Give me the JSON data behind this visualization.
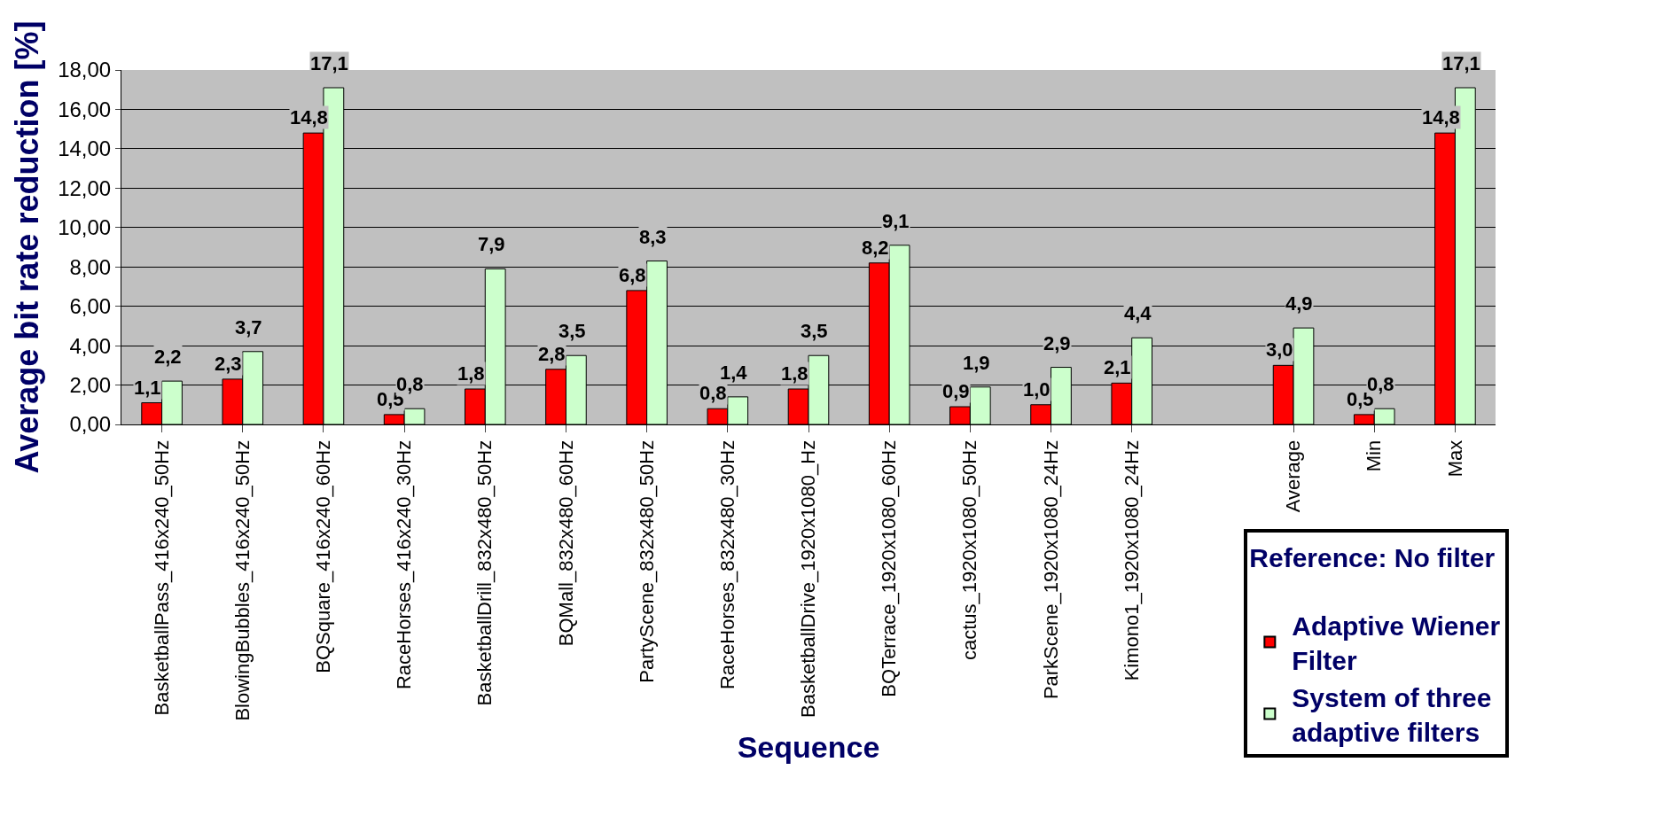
{
  "chart_data": {
    "type": "bar",
    "xlabel": "Sequence",
    "ylabel": "Average bit rate reduction [%]",
    "legend_title": "Reference: No filter",
    "categories": [
      "BasketballPass_416x240_50Hz",
      "BlowingBubbles_416x240_50Hz",
      "BQSquare_416x240_60Hz",
      "RaceHorses_416x240_30Hz",
      "BasketballDrill_832x480_50Hz",
      "BQMall_832x480_60Hz",
      "PartyScene_832x480_50Hz",
      "RaceHorses_832x480_30Hz",
      "BasketballDrive_1920x1080_Hz",
      "BQTerrace_1920x1080_60Hz",
      "cactus_1920x1080_50Hz",
      "ParkScene_1920x1080_24Hz",
      "Kimono1_1920x1080_24Hz",
      null,
      "Average",
      "Min",
      "Max"
    ],
    "series": [
      {
        "name": "Adaptive Wiener Filter",
        "color": "#ff0000",
        "values": [
          1.1,
          2.3,
          14.8,
          0.5,
          1.8,
          2.8,
          6.8,
          0.8,
          1.8,
          8.2,
          0.9,
          1.0,
          2.1,
          null,
          3.0,
          0.5,
          14.8
        ],
        "value_labels": [
          "1,1",
          "2,3",
          "14,8",
          "0,5",
          "1,8",
          "2,8",
          "6,8",
          "0,8",
          "1,8",
          "8,2",
          "0,9",
          "1,0",
          "2,1",
          null,
          "3,0",
          "0,5",
          "14,8"
        ]
      },
      {
        "name": "System of three adaptive filters",
        "color": "#ccffcc",
        "values": [
          2.2,
          3.7,
          17.1,
          0.8,
          7.9,
          3.5,
          8.3,
          1.4,
          3.5,
          9.1,
          1.9,
          2.9,
          4.4,
          null,
          4.9,
          0.8,
          17.1
        ],
        "value_labels": [
          "2,2",
          "3,7",
          "17,1",
          "0,8",
          "7,9",
          "3,5",
          "8,3",
          "1,4",
          "3,5",
          "9,1",
          "1,9",
          "2,9",
          "4,4",
          null,
          "4,9",
          "0,8",
          "17,1"
        ]
      }
    ],
    "ylim": [
      0,
      18
    ],
    "yticks": [
      {
        "value": 0,
        "label": "0,00"
      },
      {
        "value": 2,
        "label": "2,00"
      },
      {
        "value": 4,
        "label": "4,00"
      },
      {
        "value": 6,
        "label": "6,00"
      },
      {
        "value": 8,
        "label": "8,00"
      },
      {
        "value": 10,
        "label": "10,00"
      },
      {
        "value": 12,
        "label": "12,00"
      },
      {
        "value": 14,
        "label": "14,00"
      },
      {
        "value": 16,
        "label": "16,00"
      },
      {
        "value": 18,
        "label": "18,00"
      }
    ],
    "grid": "y",
    "legend": "bottom right"
  }
}
